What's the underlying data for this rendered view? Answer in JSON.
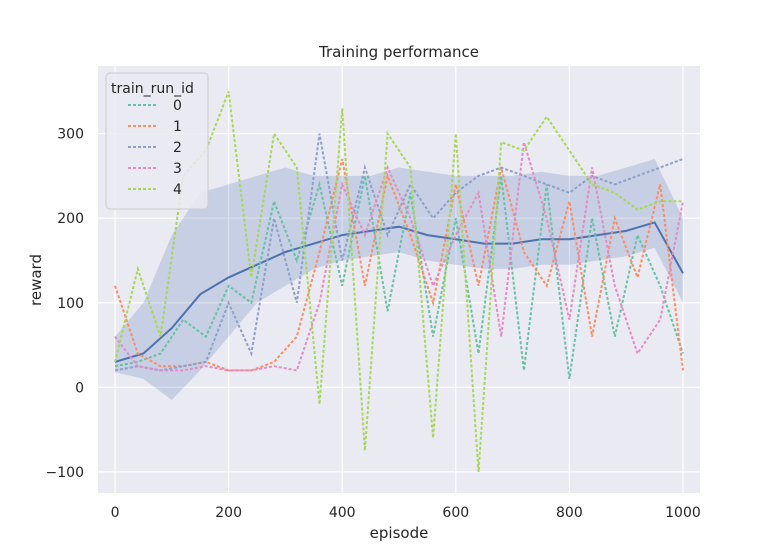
{
  "chart_data": {
    "type": "line",
    "title": "Training performance",
    "xlabel": "episode",
    "ylabel": "reward",
    "xlim": [
      -30,
      1030
    ],
    "ylim": [
      -125,
      380
    ],
    "xticks": [
      0,
      200,
      400,
      600,
      800,
      1000
    ],
    "yticks": [
      -100,
      0,
      100,
      200,
      300
    ],
    "grid": true,
    "legend": {
      "title": "train_run_id",
      "placement": "top-left",
      "entries": [
        "0",
        "1",
        "2",
        "3",
        "4"
      ]
    },
    "mean_line": {
      "color": "#4c72b0",
      "x": [
        0,
        50,
        100,
        150,
        200,
        250,
        300,
        350,
        400,
        450,
        500,
        550,
        600,
        650,
        700,
        750,
        800,
        850,
        900,
        950,
        1000
      ],
      "y": [
        30,
        40,
        70,
        110,
        130,
        145,
        160,
        170,
        180,
        185,
        190,
        180,
        175,
        170,
        170,
        175,
        175,
        180,
        185,
        195,
        135
      ],
      "band_lower": [
        18,
        10,
        -15,
        20,
        60,
        100,
        120,
        140,
        150,
        155,
        160,
        150,
        145,
        140,
        140,
        145,
        145,
        150,
        155,
        165,
        100
      ],
      "band_upper": [
        60,
        100,
        180,
        230,
        240,
        250,
        260,
        250,
        250,
        250,
        260,
        255,
        250,
        250,
        250,
        255,
        250,
        250,
        260,
        270,
        200
      ]
    },
    "series": [
      {
        "name": "0",
        "color": "#66c2a5",
        "x": [
          0,
          40,
          80,
          120,
          160,
          200,
          240,
          280,
          320,
          360,
          400,
          440,
          480,
          520,
          560,
          600,
          640,
          680,
          720,
          760,
          800,
          840,
          880,
          920,
          960,
          1000
        ],
        "y": [
          25,
          30,
          40,
          80,
          60,
          120,
          100,
          220,
          150,
          240,
          120,
          250,
          90,
          230,
          60,
          200,
          40,
          250,
          20,
          240,
          10,
          200,
          60,
          180,
          120,
          40
        ]
      },
      {
        "name": "1",
        "color": "#fc8d62",
        "x": [
          0,
          40,
          80,
          120,
          160,
          200,
          240,
          280,
          320,
          360,
          400,
          440,
          480,
          520,
          560,
          600,
          640,
          680,
          720,
          760,
          800,
          840,
          880,
          920,
          960,
          1000
        ],
        "y": [
          120,
          40,
          25,
          25,
          30,
          20,
          20,
          30,
          60,
          160,
          270,
          120,
          250,
          180,
          100,
          240,
          120,
          260,
          160,
          120,
          220,
          60,
          200,
          130,
          240,
          20
        ]
      },
      {
        "name": "2",
        "color": "#8da0cb",
        "x": [
          0,
          40,
          80,
          120,
          160,
          200,
          240,
          280,
          320,
          360,
          400,
          440,
          480,
          520,
          560,
          600,
          640,
          680,
          720,
          760,
          800,
          840,
          880,
          920,
          960,
          1000
        ],
        "y": [
          20,
          25,
          20,
          25,
          30,
          100,
          40,
          200,
          100,
          300,
          150,
          260,
          180,
          240,
          200,
          230,
          250,
          260,
          250,
          240,
          230,
          250,
          240,
          250,
          260,
          270
        ]
      },
      {
        "name": "3",
        "color": "#e78ac3",
        "x": [
          0,
          40,
          80,
          120,
          160,
          200,
          240,
          280,
          320,
          360,
          400,
          440,
          480,
          520,
          560,
          600,
          640,
          680,
          720,
          760,
          800,
          840,
          880,
          920,
          960,
          1000
        ],
        "y": [
          60,
          25,
          20,
          20,
          25,
          20,
          20,
          25,
          20,
          100,
          240,
          180,
          260,
          200,
          120,
          180,
          230,
          60,
          290,
          200,
          80,
          260,
          120,
          40,
          80,
          220
        ]
      },
      {
        "name": "4",
        "color": "#a6d854",
        "x": [
          0,
          40,
          80,
          120,
          160,
          200,
          240,
          280,
          320,
          360,
          400,
          440,
          480,
          520,
          560,
          600,
          640,
          680,
          720,
          760,
          800,
          840,
          880,
          920,
          960,
          1000
        ],
        "y": [
          30,
          140,
          60,
          250,
          280,
          350,
          130,
          300,
          260,
          -20,
          330,
          -75,
          300,
          260,
          -60,
          300,
          -100,
          290,
          280,
          320,
          280,
          240,
          230,
          210,
          220,
          220
        ]
      }
    ]
  }
}
